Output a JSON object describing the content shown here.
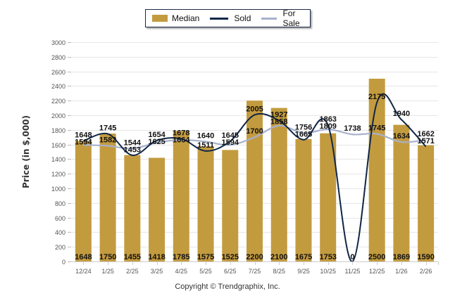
{
  "legend": {
    "items": [
      {
        "label": "Median",
        "kind": "bar",
        "color": "#c39b3f"
      },
      {
        "label": "Sold",
        "kind": "line",
        "color": "#0f2647"
      },
      {
        "label": "For Sale",
        "kind": "line",
        "color": "#a6b1cc"
      }
    ]
  },
  "copyright": "Copyright © Trendgraphix, Inc.",
  "chart_data": {
    "type": "bar",
    "title": "",
    "xlabel": "",
    "ylabel": "Price (in $,000)",
    "ylim": [
      0,
      3000
    ],
    "yticks": [
      0,
      200,
      400,
      600,
      800,
      1000,
      1200,
      1400,
      1600,
      1800,
      2000,
      2200,
      2400,
      2600,
      2800,
      3000
    ],
    "grid": true,
    "legend_position": "top-center",
    "categories": [
      "12/24",
      "1/25",
      "2/25",
      "3/25",
      "4/25",
      "5/25",
      "6/25",
      "7/25",
      "8/25",
      "9/25",
      "10/25",
      "11/25",
      "12/25",
      "1/26",
      "2/26"
    ],
    "series": [
      {
        "name": "Median",
        "type": "bar",
        "color": "#c39b3f",
        "values": [
          1648,
          1750,
          1455,
          1418,
          1785,
          1575,
          1525,
          2200,
          2100,
          1675,
          1753,
          0,
          2500,
          1869,
          1590
        ]
      },
      {
        "name": "Sold",
        "type": "line",
        "color": "#0f2647",
        "values": [
          1648,
          1745,
          1453,
          1654,
          1678,
          1511,
          1645,
          2005,
          1927,
          1665,
          1863,
          0,
          2175,
          1940,
          1571
        ]
      },
      {
        "name": "For Sale",
        "type": "line",
        "color": "#a6b1cc",
        "values": [
          1594,
          1582,
          1544,
          1625,
          1664,
          1640,
          1594,
          1700,
          1858,
          1756,
          1809,
          1738,
          1745,
          1634,
          1662
        ]
      }
    ]
  }
}
